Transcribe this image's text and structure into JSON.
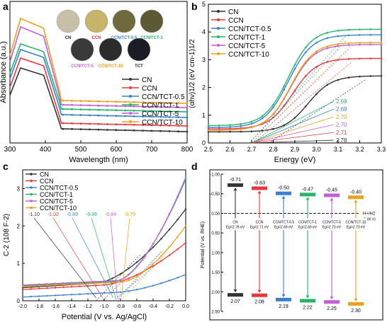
{
  "colors": {
    "CN": "#333333",
    "CCN": "#e8383d",
    "CCN/TCT-0.5": "#3a7fd0",
    "CCN/TCT-1": "#27b36a",
    "CCN/TCT-5": "#c45fd4",
    "CCN/TCT-10": "#e8a21e"
  },
  "samples": [
    "CN",
    "CCN",
    "CCN/TCT-0.5",
    "CCN/TCT-1",
    "CCN/TCT-5",
    "CCN/TCT-10"
  ],
  "panels": {
    "a": {
      "letter": "a",
      "chart_data": {
        "type": "line",
        "xlabel": "Wavelength (nm)",
        "ylabel": "Absorbance (a.u.)",
        "xlim": [
          300,
          800
        ],
        "xticks": [
          300,
          400,
          500,
          600,
          700,
          800
        ],
        "legend": "right",
        "series": [
          {
            "name": "CN",
            "peak": 0.53,
            "tail": 0.1
          },
          {
            "name": "CCN",
            "peak": 0.6,
            "tail": 0.14
          },
          {
            "name": "CCN/TCT-0.5",
            "peak": 0.66,
            "tail": 0.2
          },
          {
            "name": "CCN/TCT-1",
            "peak": 0.7,
            "tail": 0.24
          },
          {
            "name": "CCN/TCT-5",
            "peak": 0.82,
            "tail": 0.27
          },
          {
            "name": "CCN/TCT-10",
            "peak": 0.88,
            "tail": 0.3
          }
        ]
      },
      "swatches": [
        {
          "label": "CN",
          "color": "#c7bfa8",
          "swatch_label_color": "#222222"
        },
        {
          "label": "CCN",
          "color": "#c8b36a",
          "swatch_label_color": "#e8383d"
        },
        {
          "label": "CCN/TCT-0.5",
          "color": "#6f6a3e",
          "swatch_label_color": "#3a7fd0"
        },
        {
          "label": "CCN/TCT-1",
          "color": "#5b5a35",
          "swatch_label_color": "#27b36a"
        },
        {
          "label": "CCN/TCT-5",
          "color": "#3a3a3a",
          "swatch_label_color": "#c45fd4"
        },
        {
          "label": "CCN/TCT-10",
          "color": "#2c2c2c",
          "swatch_label_color": "#e8a21e"
        },
        {
          "label": "TCT",
          "color": "#1c1d24",
          "swatch_label_color": "#222222"
        }
      ]
    },
    "b": {
      "letter": "b",
      "chart_data": {
        "type": "line",
        "xlabel": "Energy (eV)",
        "ylabel": "(αhν)1/2 (eV cm-1)1/2",
        "xlim": [
          2.5,
          3.3
        ],
        "ylim": [
          0,
          5
        ],
        "xticks": [
          "2.5",
          "2.6",
          "2.7",
          "2.8",
          "2.9",
          "3.0",
          "3.1",
          "3.2",
          "3.3"
        ],
        "yticks": [
          "0",
          "1",
          "2",
          "3",
          "4",
          "5"
        ],
        "legend": "top-left",
        "bandgap_labels": [
          {
            "name": "CCN/TCT-1",
            "value": "2.69"
          },
          {
            "name": "CCN/TCT-0.5",
            "value": "2.69"
          },
          {
            "name": "CCN/TCT-10",
            "value": "2.70"
          },
          {
            "name": "CCN/TCT-5",
            "value": "2.70"
          },
          {
            "name": "CCN",
            "value": "2.71"
          },
          {
            "name": "CN",
            "value": "2.78"
          }
        ],
        "series": [
          {
            "name": "CN",
            "onset": 2.78,
            "start": 0.4,
            "end": 2.42
          },
          {
            "name": "CCN",
            "onset": 2.71,
            "start": 0.5,
            "end": 3.05
          },
          {
            "name": "CCN/TCT-0.5",
            "onset": 2.69,
            "start": 0.55,
            "end": 3.9
          },
          {
            "name": "CCN/TCT-1",
            "onset": 2.69,
            "start": 0.62,
            "end": 4.1
          },
          {
            "name": "CCN/TCT-5",
            "onset": 2.7,
            "start": 0.45,
            "end": 3.55
          },
          {
            "name": "CCN/TCT-10",
            "onset": 2.7,
            "start": 0.45,
            "end": 3.62
          }
        ]
      }
    },
    "c": {
      "letter": "c",
      "chart_data": {
        "type": "line",
        "xlabel": "Potential (V vs. Ag/AgCl)",
        "ylabel": "C-2 (108 F-2)",
        "xlim": [
          -2.0,
          0.0
        ],
        "ylim": [
          0,
          3.5
        ],
        "xticks": [
          "-2.0",
          "-1.8",
          "-1.6",
          "-1.4",
          "-1.2",
          "-1.0",
          "-0.8",
          "-0.6",
          "-0.4",
          "-0.2",
          "0.0"
        ],
        "yticks": [
          "0",
          "1",
          "2",
          "3"
        ],
        "legend": "top-left",
        "flatband_labels": [
          {
            "name": "CN",
            "value": "-1.10"
          },
          {
            "name": "CCN",
            "value": "-1.02"
          },
          {
            "name": "CCN/TCT-0.5",
            "value": "-0.89"
          },
          {
            "name": "CCN/TCT-1",
            "value": "-0.86"
          },
          {
            "name": "CCN/TCT-5",
            "value": "-0.84"
          },
          {
            "name": "CCN/TCT-10",
            "value": "-0.79"
          }
        ],
        "series": [
          {
            "name": "CN",
            "base": 0.35,
            "end": 2.45
          },
          {
            "name": "CCN",
            "base": 0.3,
            "end": 1.55
          },
          {
            "name": "CCN/TCT-0.5",
            "base": 0.1,
            "end": 0.7
          },
          {
            "name": "CCN/TCT-1",
            "base": 0.4,
            "end": 3.25
          },
          {
            "name": "CCN/TCT-5",
            "base": 0.42,
            "end": 3.3
          },
          {
            "name": "CCN/TCT-10",
            "base": 0.38,
            "end": 2.0
          }
        ]
      }
    },
    "d": {
      "letter": "d",
      "chart_data": {
        "type": "diagram",
        "ylabel": "Potential (V vs. RHE)",
        "ylim": [
          -1.0,
          2.5
        ],
        "yticks": [
          "-1.00",
          "-0.50",
          "0.00",
          "0.50",
          "1.00",
          "1.50",
          "2.00",
          "2.50"
        ],
        "reference": {
          "label": "H+/H2",
          "sub": "(0.00 V)"
        },
        "bands": [
          {
            "name": "CN",
            "cb": "-0.71",
            "vb": "2.07",
            "eg": "Eg=2.78 eV"
          },
          {
            "name": "CCN",
            "cb": "-0.63",
            "vb": "2.08",
            "eg": "Eg=2.71 eV"
          },
          {
            "name": "CCN/TCT-0.5",
            "cb": "-0.50",
            "vb": "2.19",
            "eg": "Eg=2.69 eV"
          },
          {
            "name": "CCN/TCT-1",
            "cb": "-0.47",
            "vb": "2.22",
            "eg": "Eg=2.69 eV"
          },
          {
            "name": "CCN/TCT-5",
            "cb": "-0.45",
            "vb": "2.25",
            "eg": "Eg=2.70 eV"
          },
          {
            "name": "CCN/TCT-10",
            "cb": "-0.40",
            "vb": "2.30",
            "eg": "Eg=2.70 eV"
          }
        ]
      }
    }
  }
}
